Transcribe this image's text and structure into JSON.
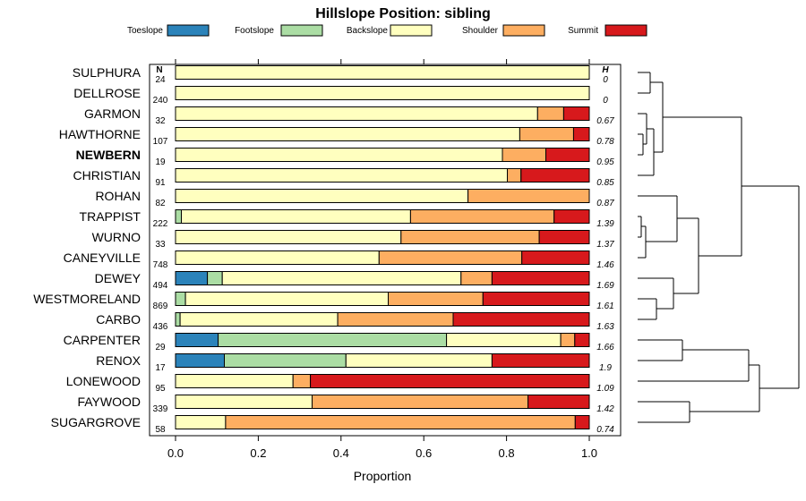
{
  "chart_data": {
    "type": "bar",
    "orientation": "horizontal-stacked",
    "title": "Hillslope Position: sibling",
    "xlabel": "Proportion",
    "xlim": [
      0,
      1
    ],
    "xticks": [
      "0.0",
      "0.2",
      "0.4",
      "0.6",
      "0.8",
      "1.0"
    ],
    "n_header": "N",
    "h_header": "H",
    "highlight": "NEWBERN",
    "series": [
      {
        "name": "Toeslope",
        "color": "#2b83ba"
      },
      {
        "name": "Footslope",
        "color": "#abdda4"
      },
      {
        "name": "Backslope",
        "color": "#ffffbf"
      },
      {
        "name": "Shoulder",
        "color": "#fdae61"
      },
      {
        "name": "Summit",
        "color": "#d7191c"
      }
    ],
    "rows": [
      {
        "name": "SULPHURA",
        "n": "24",
        "h": "0",
        "values": [
          0,
          0,
          1.0,
          0,
          0
        ]
      },
      {
        "name": "DELLROSE",
        "n": "240",
        "h": "0",
        "values": [
          0,
          0,
          1.0,
          0,
          0
        ]
      },
      {
        "name": "GARMON",
        "n": "32",
        "h": "0.67",
        "values": [
          0,
          0,
          0.875,
          0.063,
          0.062
        ]
      },
      {
        "name": "HAWTHORNE",
        "n": "107",
        "h": "0.78",
        "values": [
          0,
          0,
          0.832,
          0.13,
          0.038
        ]
      },
      {
        "name": "NEWBERN",
        "n": "19",
        "h": "0.95",
        "values": [
          0,
          0,
          0.79,
          0.105,
          0.105
        ]
      },
      {
        "name": "CHRISTIAN",
        "n": "91",
        "h": "0.85",
        "values": [
          0,
          0,
          0.802,
          0.033,
          0.165
        ]
      },
      {
        "name": "ROHAN",
        "n": "82",
        "h": "0.87",
        "values": [
          0,
          0,
          0.707,
          0.293,
          0
        ]
      },
      {
        "name": "TRAPPIST",
        "n": "222",
        "h": "1.39",
        "values": [
          0,
          0.014,
          0.554,
          0.347,
          0.085
        ]
      },
      {
        "name": "WURNO",
        "n": "33",
        "h": "1.37",
        "values": [
          0,
          0,
          0.545,
          0.334,
          0.121
        ]
      },
      {
        "name": "CANEYVILLE",
        "n": "748",
        "h": "1.46",
        "values": [
          0,
          0,
          0.492,
          0.345,
          0.163
        ]
      },
      {
        "name": "DEWEY",
        "n": "494",
        "h": "1.69",
        "values": [
          0.077,
          0.036,
          0.577,
          0.075,
          0.235
        ]
      },
      {
        "name": "WESTMORELAND",
        "n": "869",
        "h": "1.61",
        "values": [
          0,
          0.024,
          0.49,
          0.229,
          0.257
        ]
      },
      {
        "name": "CARBO",
        "n": "436",
        "h": "1.63",
        "values": [
          0,
          0.011,
          0.381,
          0.279,
          0.329
        ]
      },
      {
        "name": "CARPENTER",
        "n": "29",
        "h": "1.66",
        "values": [
          0.103,
          0.552,
          0.276,
          0.034,
          0.035
        ]
      },
      {
        "name": "RENOX",
        "n": "17",
        "h": "1.9",
        "values": [
          0.118,
          0.294,
          0.353,
          0,
          0.235
        ]
      },
      {
        "name": "LONEWOOD",
        "n": "95",
        "h": "1.09",
        "values": [
          0,
          0,
          0.284,
          0.042,
          0.674
        ]
      },
      {
        "name": "FAYWOOD",
        "n": "339",
        "h": "1.42",
        "values": [
          0,
          0,
          0.33,
          0.522,
          0.148
        ]
      },
      {
        "name": "SUGARGROVE",
        "n": "58",
        "h": "0.74",
        "values": [
          0,
          0,
          0.121,
          0.845,
          0.034
        ]
      }
    ]
  }
}
